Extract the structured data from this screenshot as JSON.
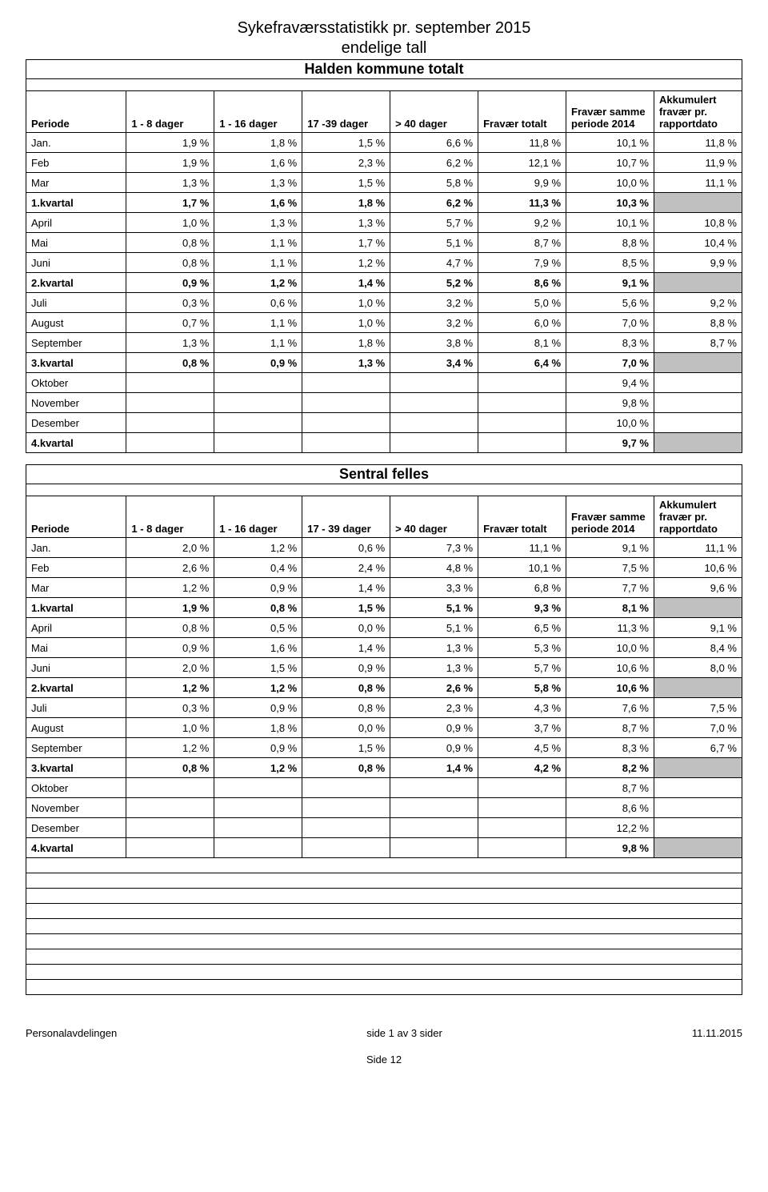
{
  "doc_title": "Sykefraværsstatistikk pr. september 2015",
  "doc_subtitle": "endelige tall",
  "sections": [
    {
      "name": "Halden kommune totalt",
      "header_col3": "17 -39 dager",
      "rows": [
        {
          "p": "Jan.",
          "v": [
            "1,9 %",
            "1,8 %",
            "1,5 %",
            "6,6 %",
            "11,8 %",
            "10,1 %",
            "11,8 %"
          ]
        },
        {
          "p": "Feb",
          "v": [
            "1,9 %",
            "1,6 %",
            "2,3 %",
            "6,2 %",
            "12,1 %",
            "10,7 %",
            "11,9 %"
          ]
        },
        {
          "p": "Mar",
          "v": [
            "1,3 %",
            "1,3 %",
            "1,5 %",
            "5,8 %",
            "9,9 %",
            "10,0 %",
            "11,1 %"
          ]
        },
        {
          "p": "1.kvartal",
          "v": [
            "1,7 %",
            "1,6 %",
            "1,8 %",
            "6,2 %",
            "11,3 %",
            "10,3 %",
            ""
          ],
          "kv": true
        },
        {
          "p": "April",
          "v": [
            "1,0 %",
            "1,3 %",
            "1,3 %",
            "5,7 %",
            "9,2 %",
            "10,1 %",
            "10,8 %"
          ]
        },
        {
          "p": "Mai",
          "v": [
            "0,8 %",
            "1,1 %",
            "1,7 %",
            "5,1 %",
            "8,7 %",
            "8,8 %",
            "10,4 %"
          ]
        },
        {
          "p": "Juni",
          "v": [
            "0,8 %",
            "1,1 %",
            "1,2 %",
            "4,7 %",
            "7,9 %",
            "8,5 %",
            "9,9 %"
          ]
        },
        {
          "p": "2.kvartal",
          "v": [
            "0,9 %",
            "1,2 %",
            "1,4 %",
            "5,2 %",
            "8,6 %",
            "9,1 %",
            ""
          ],
          "kv": true
        },
        {
          "p": "Juli",
          "v": [
            "0,3 %",
            "0,6 %",
            "1,0 %",
            "3,2 %",
            "5,0 %",
            "5,6 %",
            "9,2 %"
          ]
        },
        {
          "p": "August",
          "v": [
            "0,7 %",
            "1,1 %",
            "1,0 %",
            "3,2 %",
            "6,0 %",
            "7,0 %",
            "8,8 %"
          ]
        },
        {
          "p": "September",
          "v": [
            "1,3 %",
            "1,1 %",
            "1,8 %",
            "3,8 %",
            "8,1 %",
            "8,3 %",
            "8,7 %"
          ]
        },
        {
          "p": "3.kvartal",
          "v": [
            "0,8 %",
            "0,9 %",
            "1,3 %",
            "3,4 %",
            "6,4 %",
            "7,0 %",
            ""
          ],
          "kv": true
        },
        {
          "p": "Oktober",
          "v": [
            "",
            "",
            "",
            "",
            "",
            "9,4 %",
            ""
          ]
        },
        {
          "p": "November",
          "v": [
            "",
            "",
            "",
            "",
            "",
            "9,8 %",
            ""
          ]
        },
        {
          "p": "Desember",
          "v": [
            "",
            "",
            "",
            "",
            "",
            "10,0 %",
            ""
          ]
        },
        {
          "p": "4.kvartal",
          "v": [
            "",
            "",
            "",
            "",
            "",
            "9,7 %",
            ""
          ],
          "kv": true
        }
      ],
      "empty_rows": 0
    },
    {
      "name": "Sentral felles",
      "header_col3": "17 - 39 dager",
      "rows": [
        {
          "p": "Jan.",
          "v": [
            "2,0 %",
            "1,2 %",
            "0,6 %",
            "7,3 %",
            "11,1 %",
            "9,1 %",
            "11,1 %"
          ]
        },
        {
          "p": "Feb",
          "v": [
            "2,6 %",
            "0,4 %",
            "2,4 %",
            "4,8 %",
            "10,1 %",
            "7,5 %",
            "10,6 %"
          ]
        },
        {
          "p": "Mar",
          "v": [
            "1,2 %",
            "0,9 %",
            "1,4 %",
            "3,3 %",
            "6,8 %",
            "7,7 %",
            "9,6 %"
          ]
        },
        {
          "p": "1.kvartal",
          "v": [
            "1,9 %",
            "0,8 %",
            "1,5 %",
            "5,1 %",
            "9,3 %",
            "8,1 %",
            ""
          ],
          "kv": true
        },
        {
          "p": "April",
          "v": [
            "0,8 %",
            "0,5 %",
            "0,0 %",
            "5,1 %",
            "6,5 %",
            "11,3 %",
            "9,1 %"
          ]
        },
        {
          "p": "Mai",
          "v": [
            "0,9 %",
            "1,6 %",
            "1,4 %",
            "1,3 %",
            "5,3 %",
            "10,0 %",
            "8,4 %"
          ]
        },
        {
          "p": "Juni",
          "v": [
            "2,0 %",
            "1,5 %",
            "0,9 %",
            "1,3 %",
            "5,7 %",
            "10,6 %",
            "8,0 %"
          ]
        },
        {
          "p": "2.kvartal",
          "v": [
            "1,2 %",
            "1,2 %",
            "0,8 %",
            "2,6 %",
            "5,8 %",
            "10,6 %",
            ""
          ],
          "kv": true
        },
        {
          "p": "Juli",
          "v": [
            "0,3 %",
            "0,9 %",
            "0,8 %",
            "2,3 %",
            "4,3 %",
            "7,6 %",
            "7,5 %"
          ]
        },
        {
          "p": "August",
          "v": [
            "1,0 %",
            "1,8 %",
            "0,0 %",
            "0,9 %",
            "3,7 %",
            "8,7 %",
            "7,0 %"
          ]
        },
        {
          "p": "September",
          "v": [
            "1,2 %",
            "0,9 %",
            "1,5 %",
            "0,9 %",
            "4,5 %",
            "8,3 %",
            "6,7 %"
          ]
        },
        {
          "p": "3.kvartal",
          "v": [
            "0,8 %",
            "1,2 %",
            "0,8 %",
            "1,4 %",
            "4,2 %",
            "8,2 %",
            ""
          ],
          "kv": true
        },
        {
          "p": "Oktober",
          "v": [
            "",
            "",
            "",
            "",
            "",
            "8,7 %",
            ""
          ]
        },
        {
          "p": "November",
          "v": [
            "",
            "",
            "",
            "",
            "",
            "8,6 %",
            ""
          ]
        },
        {
          "p": "Desember",
          "v": [
            "",
            "",
            "",
            "",
            "",
            "12,2 %",
            ""
          ]
        },
        {
          "p": "4.kvartal",
          "v": [
            "",
            "",
            "",
            "",
            "",
            "9,8 %",
            ""
          ],
          "kv": true
        }
      ],
      "empty_rows": 9
    }
  ],
  "columns": {
    "periode": "Periode",
    "c1": "1 - 8 dager",
    "c2": "1 - 16 dager",
    "c4": "> 40 dager",
    "c5": "Fravær totalt",
    "c6": "Fravær samme periode 2014",
    "c7": "Akkumulert fravær pr. rapportdato"
  },
  "footer": {
    "left": "Personalavdelingen",
    "center": "side 1 av 3 sider",
    "right": "11.11.2015"
  },
  "page_number": "Side 12",
  "style": {
    "background_color": "#ffffff",
    "text_color": "#000000",
    "border_color": "#000000",
    "shade_color": "#c0c0c0",
    "title_fontsize": 20,
    "section_title_fontsize": 18,
    "body_fontsize": 13,
    "font_family": "Arial"
  }
}
